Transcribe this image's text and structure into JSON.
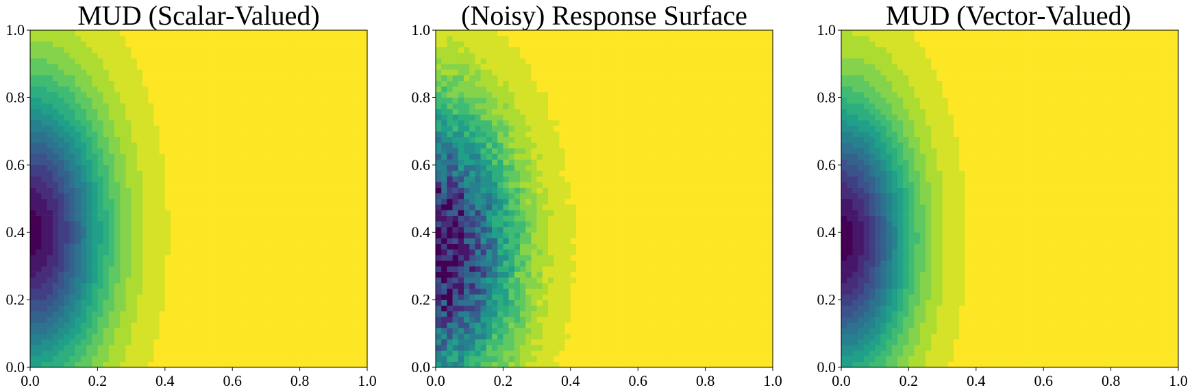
{
  "colors": {
    "background": "#ffffff",
    "colormap": "viridis",
    "viridis_stops": [
      "#440154",
      "#482878",
      "#3e4a89",
      "#31688e",
      "#26828e",
      "#1f9e89",
      "#35b779",
      "#6ece58",
      "#b5de2b",
      "#fde725"
    ]
  },
  "chart_data": [
    {
      "type": "heatmap",
      "title": "MUD (Scalar-Valued)",
      "xlim": [
        0,
        1
      ],
      "ylim": [
        0,
        1
      ],
      "xticks": [
        "0.0",
        "0.2",
        "0.4",
        "0.6",
        "0.8",
        "1.0"
      ],
      "yticks": [
        "0.0",
        "0.2",
        "0.4",
        "0.6",
        "0.8",
        "1.0"
      ],
      "surface": {
        "center": [
          0.0,
          0.4
        ],
        "sx": 0.22,
        "sy": 0.42,
        "noise": false,
        "tail_x": 0.4
      }
    },
    {
      "type": "heatmap",
      "title": "(Noisy) Response Surface",
      "xlim": [
        0,
        1
      ],
      "ylim": [
        0,
        1
      ],
      "xticks": [
        "0.0",
        "0.2",
        "0.4",
        "0.6",
        "0.8",
        "1.0"
      ],
      "yticks": [
        "0.0",
        "0.2",
        "0.4",
        "0.6",
        "0.8",
        "1.0"
      ],
      "surface": {
        "center": [
          0.0,
          0.35
        ],
        "sx": 0.22,
        "sy": 0.4,
        "noise": true,
        "tail_x": 0.4
      }
    },
    {
      "type": "heatmap",
      "title": "MUD (Vector-Valued)",
      "xlim": [
        0,
        1
      ],
      "ylim": [
        0,
        1
      ],
      "xticks": [
        "0.0",
        "0.2",
        "0.4",
        "0.6",
        "0.8",
        "1.0"
      ],
      "yticks": [
        "0.0",
        "0.2",
        "0.4",
        "0.6",
        "0.8",
        "1.0"
      ],
      "surface": {
        "center": [
          0.0,
          0.38
        ],
        "sx": 0.2,
        "sy": 0.4,
        "noise": false,
        "tail_x": 0.45
      }
    }
  ]
}
